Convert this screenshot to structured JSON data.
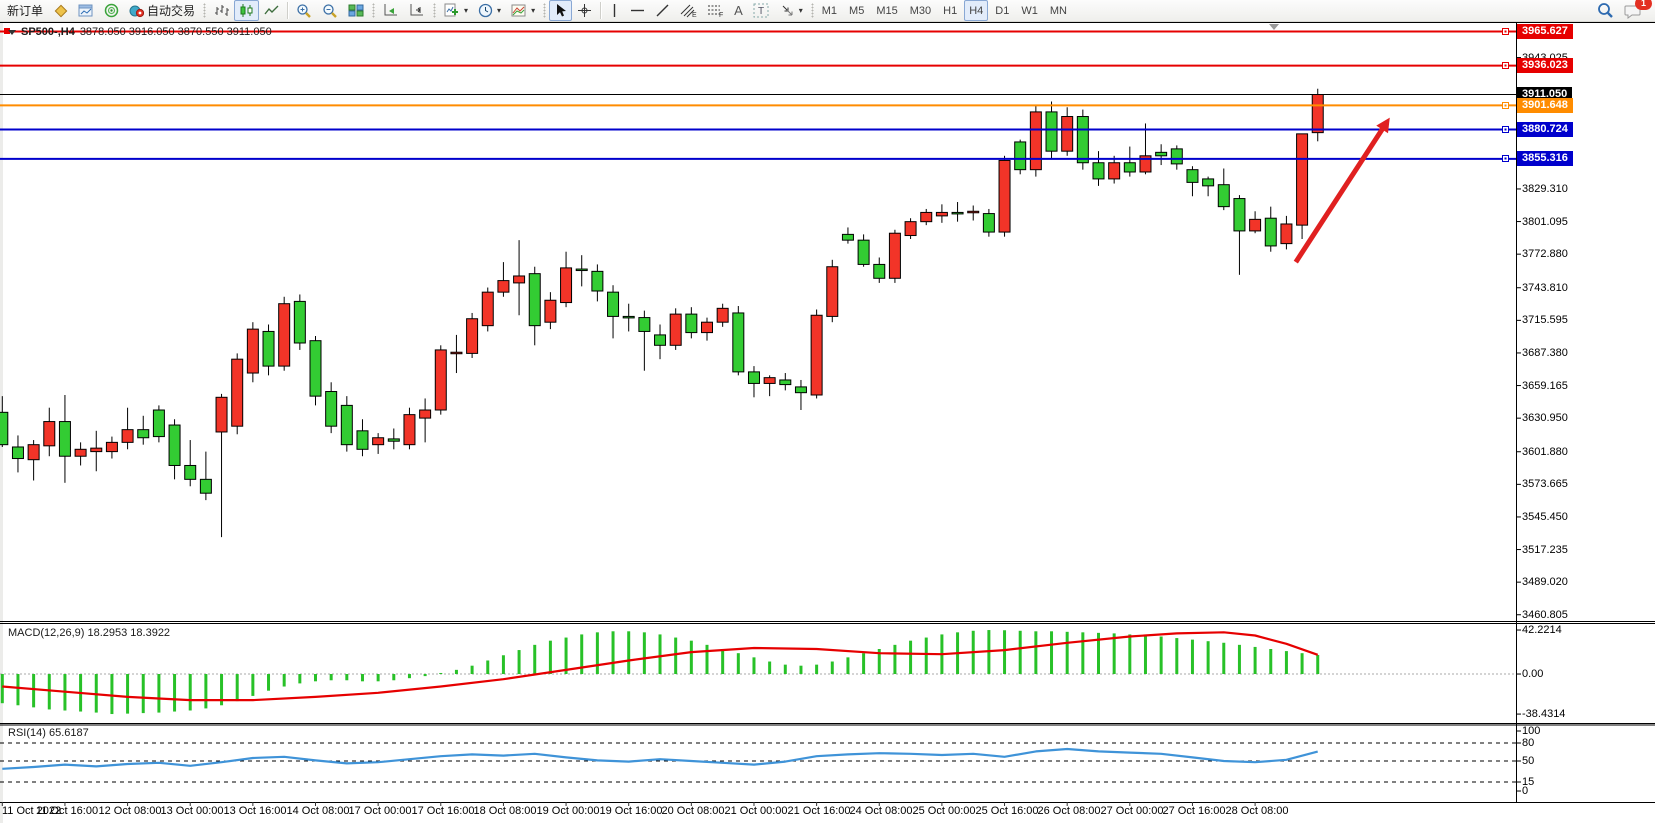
{
  "toolbar": {
    "new_order_label": "新订单",
    "auto_trading_label": "自动交易",
    "timeframes": [
      "M1",
      "M5",
      "M15",
      "M30",
      "H1",
      "H4",
      "D1",
      "W1",
      "MN"
    ],
    "active_timeframe": "H4",
    "notification_count": "1",
    "channel_letter": "E",
    "fibo_letter": "F",
    "text_tool_label": "A",
    "label_tool_label": "T"
  },
  "chart_header": {
    "symbol_period": "SP500-,H4",
    "ohlc_text": "3878.050 3916.050 3870.550 3911.050"
  },
  "panels": {
    "macd_label": "MACD(12,26,9) 18.2953 18.3922",
    "rsi_label": "RSI(14) 65.6187"
  },
  "chart_data": {
    "type": "candlestick",
    "symbol": "SP500-",
    "period": "H4",
    "colors": {
      "up_candle": "#f23428",
      "down_candle": "#33cc33",
      "candle_outline": "#000000",
      "macd_hist": "#28c128",
      "macd_signal": "#e60000",
      "rsi_line": "#3f93d8",
      "red_line": "#e60000",
      "orange_line": "#ff8c00",
      "blue_line": "#0000cc",
      "current_line": "#000000",
      "arrow": "#e02020"
    },
    "price_axis": {
      "top": 3973.8,
      "bottom": 3455.4,
      "ticks": [
        3943.025,
        3829.31,
        3801.095,
        3772.88,
        3743.81,
        3715.595,
        3687.38,
        3659.165,
        3630.95,
        3601.88,
        3573.665,
        3545.45,
        3517.235,
        3489.02,
        3460.805
      ]
    },
    "hlines": [
      {
        "value": 3965.627,
        "color": "#e60000",
        "width": 2,
        "badge": "3965.627",
        "left_handle": true
      },
      {
        "value": 3936.023,
        "color": "#e60000",
        "width": 2,
        "badge": "3936.023",
        "left_handle": false
      },
      {
        "value": 3911.05,
        "color": "#000000",
        "width": 1,
        "badge": "3911.050",
        "current": true
      },
      {
        "value": 3901.648,
        "color": "#ff8c00",
        "width": 2,
        "badge": "3901.648",
        "left_handle": false
      },
      {
        "value": 3880.724,
        "color": "#0000cc",
        "width": 2,
        "badge": "3880.724",
        "left_handle": false
      },
      {
        "value": 3855.316,
        "color": "#0000cc",
        "width": 2,
        "badge": "3855.316",
        "left_handle": false
      }
    ],
    "candles": [
      [
        3636,
        3650,
        3606,
        3608
      ],
      [
        3606,
        3616,
        3584,
        3596
      ],
      [
        3595,
        3612,
        3577,
        3608
      ],
      [
        3607,
        3640,
        3598,
        3628
      ],
      [
        3628,
        3651,
        3575,
        3598
      ],
      [
        3598,
        3610,
        3590,
        3604
      ],
      [
        3602,
        3620,
        3585,
        3605
      ],
      [
        3602,
        3615,
        3596,
        3610
      ],
      [
        3610,
        3640,
        3604,
        3621
      ],
      [
        3621,
        3633,
        3608,
        3614
      ],
      [
        3638,
        3642,
        3610,
        3615
      ],
      [
        3625,
        3630,
        3578,
        3590
      ],
      [
        3590,
        3612,
        3572,
        3578
      ],
      [
        3578,
        3602,
        3560,
        3566
      ],
      [
        3619,
        3652,
        3528,
        3649
      ],
      [
        3624,
        3687,
        3617,
        3682
      ],
      [
        3670,
        3714,
        3662,
        3708
      ],
      [
        3706,
        3712,
        3668,
        3676
      ],
      [
        3676,
        3736,
        3672,
        3730
      ],
      [
        3732,
        3738,
        3690,
        3696
      ],
      [
        3698,
        3702,
        3642,
        3650
      ],
      [
        3654,
        3662,
        3618,
        3624
      ],
      [
        3642,
        3650,
        3602,
        3608
      ],
      [
        3620,
        3630,
        3598,
        3604
      ],
      [
        3608,
        3618,
        3600,
        3614
      ],
      [
        3613,
        3622,
        3604,
        3611
      ],
      [
        3608,
        3640,
        3604,
        3634
      ],
      [
        3631,
        3648,
        3610,
        3638
      ],
      [
        3638,
        3694,
        3634,
        3690
      ],
      [
        3687,
        3703,
        3670,
        3688
      ],
      [
        3687,
        3722,
        3683,
        3717
      ],
      [
        3711,
        3744,
        3706,
        3740
      ],
      [
        3740,
        3766,
        3736,
        3750
      ],
      [
        3748,
        3785,
        3720,
        3754
      ],
      [
        3756,
        3762,
        3694,
        3711
      ],
      [
        3714,
        3740,
        3708,
        3733
      ],
      [
        3731,
        3775,
        3727,
        3761
      ],
      [
        3760,
        3772,
        3745,
        3759
      ],
      [
        3758,
        3764,
        3732,
        3741
      ],
      [
        3740,
        3746,
        3700,
        3719
      ],
      [
        3719,
        3730,
        3706,
        3718
      ],
      [
        3718,
        3724,
        3672,
        3706
      ],
      [
        3703,
        3712,
        3682,
        3694
      ],
      [
        3694,
        3726,
        3690,
        3721
      ],
      [
        3721,
        3727,
        3700,
        3705
      ],
      [
        3705,
        3718,
        3698,
        3714
      ],
      [
        3714,
        3730,
        3710,
        3726
      ],
      [
        3722,
        3728,
        3668,
        3671
      ],
      [
        3671,
        3676,
        3649,
        3661
      ],
      [
        3661,
        3668,
        3650,
        3666
      ],
      [
        3664,
        3670,
        3655,
        3660
      ],
      [
        3658,
        3664,
        3638,
        3653
      ],
      [
        3651,
        3725,
        3648,
        3720
      ],
      [
        3719,
        3768,
        3714,
        3762
      ],
      [
        3790,
        3796,
        3782,
        3785
      ],
      [
        3785,
        3790,
        3762,
        3764
      ],
      [
        3764,
        3770,
        3748,
        3752
      ],
      [
        3752,
        3794,
        3748,
        3791
      ],
      [
        3789,
        3804,
        3786,
        3801
      ],
      [
        3801,
        3812,
        3798,
        3809
      ],
      [
        3806,
        3816,
        3800,
        3809
      ],
      [
        3809,
        3818,
        3801,
        3808
      ],
      [
        3809,
        3815,
        3802,
        3810
      ],
      [
        3808,
        3812,
        3788,
        3792
      ],
      [
        3792,
        3858,
        3788,
        3854
      ],
      [
        3870,
        3872,
        3842,
        3846
      ],
      [
        3846,
        3902,
        3840,
        3896
      ],
      [
        3896,
        3905,
        3856,
        3862
      ],
      [
        3862,
        3900,
        3858,
        3892
      ],
      [
        3892,
        3898,
        3846,
        3852
      ],
      [
        3852,
        3862,
        3832,
        3838
      ],
      [
        3838,
        3858,
        3834,
        3852
      ],
      [
        3852,
        3866,
        3840,
        3844
      ],
      [
        3844,
        3886,
        3842,
        3858
      ],
      [
        3861,
        3868,
        3850,
        3858
      ],
      [
        3864,
        3867,
        3846,
        3851
      ],
      [
        3846,
        3849,
        3823,
        3835
      ],
      [
        3838,
        3840,
        3823,
        3832
      ],
      [
        3833,
        3847,
        3811,
        3814
      ],
      [
        3821,
        3824,
        3755,
        3793
      ],
      [
        3793,
        3810,
        3791,
        3803
      ],
      [
        3804,
        3814,
        3775,
        3780
      ],
      [
        3782,
        3806,
        3777,
        3799
      ],
      [
        3798,
        3877,
        3786,
        3877
      ],
      [
        3878.05,
        3916.05,
        3870.55,
        3911.05
      ]
    ],
    "x_labels": [
      "11 Oct 2022",
      "11 Oct 16:00",
      "12 Oct 08:00",
      "13 Oct 00:00",
      "13 Oct 16:00",
      "14 Oct 08:00",
      "17 Oct 00:00",
      "17 Oct 16:00",
      "18 Oct 08:00",
      "19 Oct 00:00",
      "19 Oct 16:00",
      "20 Oct 08:00",
      "21 Oct 00:00",
      "21 Oct 16:00",
      "24 Oct 08:00",
      "25 Oct 00:00",
      "25 Oct 16:00",
      "26 Oct 08:00",
      "27 Oct 00:00",
      "27 Oct 16:00",
      "28 Oct 08:00"
    ],
    "x_label_every_n_bars": 4,
    "macd": {
      "params": "12,26,9",
      "main_value": 18.2953,
      "signal_value": 18.3922,
      "ylim": [
        -47.0,
        48.0
      ],
      "axis_labels": [
        {
          "text": "42.2214",
          "v": 42.2214
        },
        {
          "text": "0.00",
          "v": 0
        },
        {
          "text": "-38.4314",
          "v": -38.4314
        }
      ],
      "hist": [
        -28,
        -30,
        -32,
        -34,
        -35,
        -36,
        -37,
        -38.4,
        -38,
        -37.5,
        -37,
        -36,
        -35,
        -33,
        -30,
        -26,
        -21,
        -16,
        -12,
        -9,
        -7,
        -6,
        -6,
        -7,
        -7,
        -6,
        -4,
        -2,
        1,
        4,
        8,
        13,
        18,
        23,
        28,
        32,
        35,
        38,
        40,
        41,
        41,
        40,
        38,
        35,
        32,
        28,
        24,
        20,
        16,
        12,
        9,
        8,
        9,
        12,
        16,
        20,
        24,
        28,
        32,
        35,
        38,
        40,
        41.5,
        42.2,
        42,
        41.5,
        41,
        41,
        40.5,
        40,
        39.5,
        39,
        38,
        37,
        36,
        34.5,
        33,
        31.5,
        30,
        28,
        26,
        24,
        22,
        20,
        18.3
      ],
      "signal_points": [
        [
          0,
          -12
        ],
        [
          4,
          -17
        ],
        [
          8,
          -22
        ],
        [
          12,
          -25
        ],
        [
          16,
          -25
        ],
        [
          20,
          -22
        ],
        [
          24,
          -18
        ],
        [
          28,
          -12
        ],
        [
          32,
          -5
        ],
        [
          36,
          4
        ],
        [
          40,
          13
        ],
        [
          44,
          21
        ],
        [
          48,
          25
        ],
        [
          52,
          24
        ],
        [
          56,
          20
        ],
        [
          60,
          19
        ],
        [
          64,
          23
        ],
        [
          68,
          30
        ],
        [
          72,
          36
        ],
        [
          75,
          39
        ],
        [
          78,
          40
        ],
        [
          80,
          37
        ],
        [
          82,
          29
        ],
        [
          84,
          18.4
        ]
      ]
    },
    "rsi": {
      "period": 14,
      "value": 65.6187,
      "ylim": [
        -18.3,
        110
      ],
      "axis_labels": [
        {
          "text": "100",
          "v": 100,
          "dash": false
        },
        {
          "text": "80",
          "v": 80,
          "dash": true
        },
        {
          "text": "50",
          "v": 50,
          "dash": true
        },
        {
          "text": "15",
          "v": 15,
          "dash": true
        },
        {
          "text": "0",
          "v": 0,
          "dash": false
        }
      ],
      "points": [
        [
          0,
          37
        ],
        [
          2,
          40
        ],
        [
          4,
          44
        ],
        [
          6,
          41
        ],
        [
          8,
          45
        ],
        [
          10,
          47
        ],
        [
          12,
          42
        ],
        [
          14,
          48
        ],
        [
          16,
          55
        ],
        [
          18,
          57
        ],
        [
          20,
          51
        ],
        [
          22,
          46
        ],
        [
          24,
          48
        ],
        [
          26,
          53
        ],
        [
          28,
          58
        ],
        [
          30,
          61
        ],
        [
          32,
          59
        ],
        [
          34,
          62
        ],
        [
          36,
          56
        ],
        [
          38,
          51
        ],
        [
          40,
          49
        ],
        [
          42,
          53
        ],
        [
          44,
          50
        ],
        [
          46,
          47
        ],
        [
          48,
          44
        ],
        [
          50,
          49
        ],
        [
          52,
          58
        ],
        [
          54,
          61
        ],
        [
          56,
          63
        ],
        [
          58,
          62
        ],
        [
          60,
          60
        ],
        [
          62,
          62
        ],
        [
          64,
          57
        ],
        [
          66,
          66
        ],
        [
          68,
          70
        ],
        [
          70,
          66
        ],
        [
          72,
          64
        ],
        [
          74,
          62
        ],
        [
          76,
          56
        ],
        [
          78,
          50
        ],
        [
          80,
          48
        ],
        [
          82,
          52
        ],
        [
          84,
          65.6
        ]
      ]
    },
    "arrow": {
      "from": {
        "bar": 82.6,
        "price": 3766
      },
      "to": {
        "bar": 88.6,
        "price": 3891
      },
      "color": "#e02020",
      "width": 5
    }
  }
}
